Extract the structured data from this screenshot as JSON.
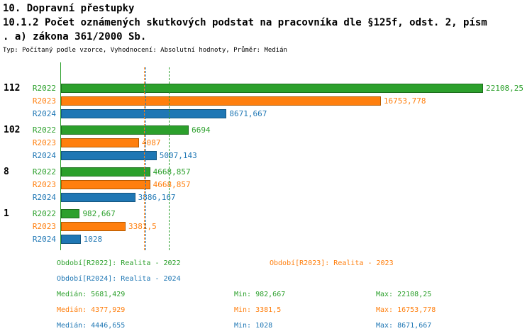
{
  "header": {
    "line1": "10. Dopravní přestupky",
    "line2": "10.1.2 Počet oznámených skutkových podstat na pracovníka dle §125f, odst. 2, písm",
    "line3": ". a) zákona 361/2000 Sb.",
    "subtitle": "Typ: Počítaný podle vzorce, Vyhodnocení: Absolutní hodnoty, Průměr: Medián"
  },
  "chart_data": {
    "type": "bar",
    "orientation": "horizontal",
    "x_axis_max": 22108.25,
    "series": [
      "R2022",
      "R2023",
      "R2024"
    ],
    "series_colors": {
      "R2022": "#2ca02c",
      "R2023": "#ff7f0e",
      "R2024": "#1f77b4"
    },
    "series_border_colors": {
      "R2022": "#1c6e1c",
      "R2023": "#b35900",
      "R2024": "#14557e"
    },
    "axis_color": "#2ca02c",
    "groups": [
      {
        "category": "112",
        "values": [
          22108.25,
          16753.778,
          8671.667
        ],
        "labels": [
          "22108,25",
          "16753,778",
          "8671,667"
        ]
      },
      {
        "category": "102",
        "values": [
          6694,
          4087,
          5007.143
        ],
        "labels": [
          "6694",
          "4087",
          "5007,143"
        ]
      },
      {
        "category": "8",
        "values": [
          4668.857,
          4668.857,
          3886.167
        ],
        "labels": [
          "4668,857",
          "4668,857",
          "3886,167"
        ]
      },
      {
        "category": "1",
        "values": [
          982.667,
          3381.5,
          1028
        ],
        "labels": [
          "982,667",
          "3381,5",
          "1028"
        ]
      }
    ],
    "median_lines": [
      {
        "series": "R2022",
        "value": 5681.429
      },
      {
        "series": "R2023",
        "value": 4377.929
      },
      {
        "series": "R2024",
        "value": 4446.655
      }
    ]
  },
  "legend": {
    "r2022": "Období[R2022]: Realita - 2022",
    "r2023": "Období[R2023]: Realita - 2023",
    "r2024": "Období[R2024]: Realita - 2024"
  },
  "stats": {
    "r2022": {
      "median": "Medián: 5681,429",
      "min": "Min: 982,667",
      "max": "Max: 22108,25"
    },
    "r2023": {
      "median": "Medián: 4377,929",
      "min": "Min: 3381,5",
      "max": "Max: 16753,778"
    },
    "r2024": {
      "median": "Medián: 4446,655",
      "min": "Min: 1028",
      "max": "Max: 8671,667"
    }
  }
}
